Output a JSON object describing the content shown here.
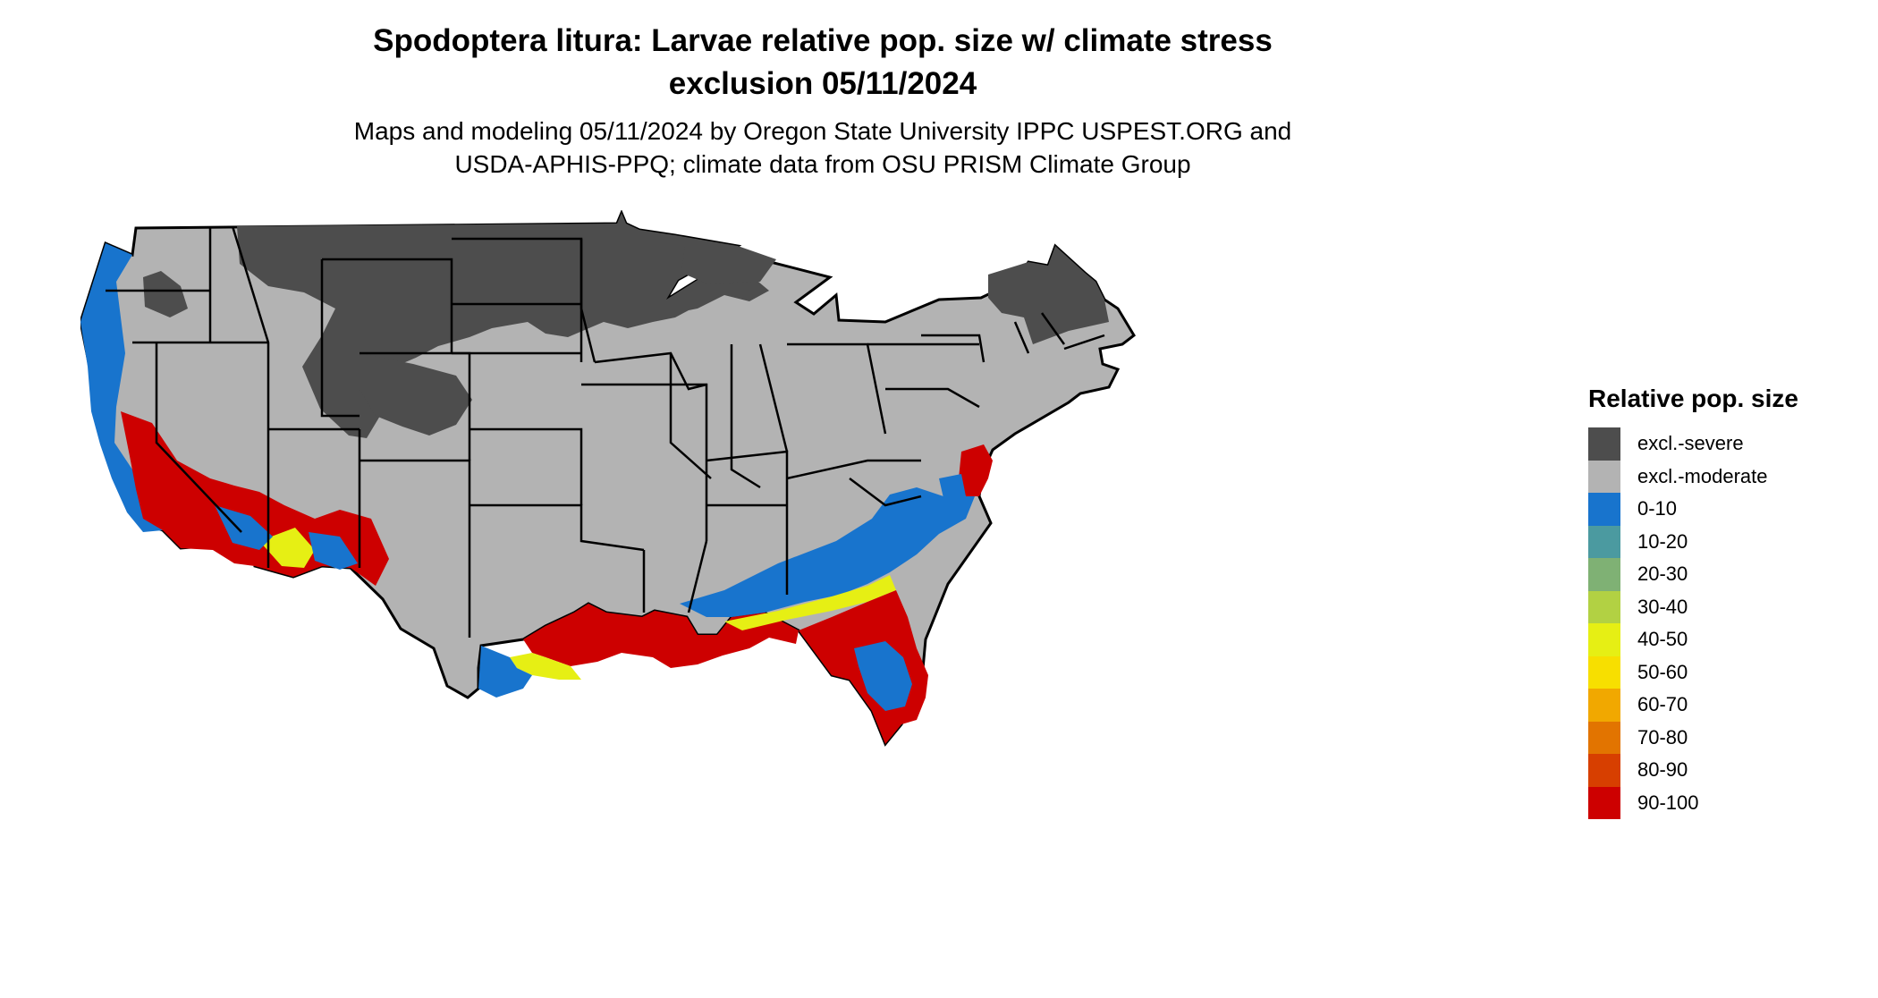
{
  "title_line1": "Spodoptera litura: Larvae relative pop. size w/ climate stress",
  "title_line2": "exclusion 05/11/2024",
  "subtitle_line1": "Maps and modeling 05/11/2024 by Oregon State University IPPC USPEST.ORG and",
  "subtitle_line2": "USDA-APHIS-PPQ; climate data from OSU PRISM Climate Group",
  "legend": {
    "title": "Relative pop. size",
    "items": [
      {
        "label": "excl.-severe",
        "color": "#4d4d4d"
      },
      {
        "label": "excl.-moderate",
        "color": "#b3b3b3"
      },
      {
        "label": "0-10",
        "color": "#1874cd"
      },
      {
        "label": "10-20",
        "color": "#4b9aa0"
      },
      {
        "label": "20-30",
        "color": "#7fb174"
      },
      {
        "label": "30-40",
        "color": "#b2d143"
      },
      {
        "label": "40-50",
        "color": "#e6ef14"
      },
      {
        "label": "50-60",
        "color": "#f7df00"
      },
      {
        "label": "60-70",
        "color": "#f1a800"
      },
      {
        "label": "70-80",
        "color": "#e27400"
      },
      {
        "label": "80-90",
        "color": "#d73f00"
      },
      {
        "label": "90-100",
        "color": "#cd0000"
      }
    ]
  },
  "colors": {
    "severe": "#4d4d4d",
    "moderate": "#b3b3b3",
    "low": "#1874cd",
    "yellow": "#e6ef14",
    "orange": "#f1a800",
    "high": "#cd0000",
    "border": "#000000"
  }
}
